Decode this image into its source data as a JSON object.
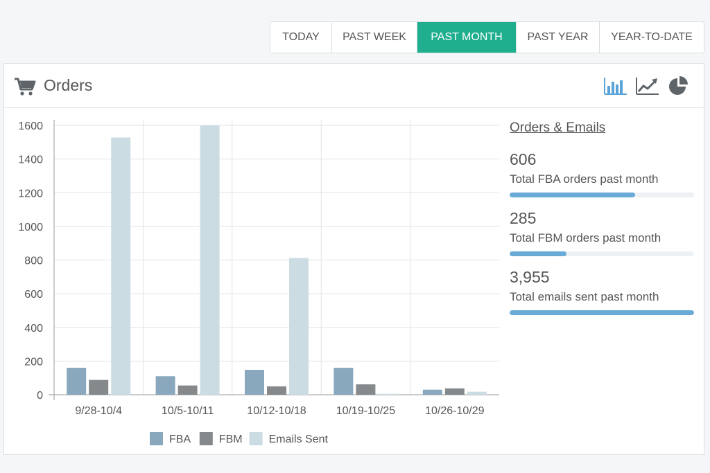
{
  "tabs": [
    {
      "label": "TODAY",
      "active": false
    },
    {
      "label": "PAST WEEK",
      "active": false
    },
    {
      "label": "PAST MONTH",
      "active": true
    },
    {
      "label": "PAST YEAR",
      "active": false
    },
    {
      "label": "YEAR-TO-DATE",
      "active": false
    }
  ],
  "panel": {
    "title": "Orders",
    "icons": [
      "shopping-cart-icon",
      "bar-chart-icon",
      "line-chart-icon",
      "pie-chart-icon"
    ]
  },
  "colors": {
    "accent": "#1fae8e",
    "fba": "#89a8bd",
    "fbm": "#85898c",
    "emails": "#cbdde3",
    "progress": "#6aaad6",
    "active_view_icon": "#5aa3d8"
  },
  "stats": {
    "title": "Orders & Emails",
    "items": [
      {
        "value": "606",
        "label": "Total FBA orders past month",
        "progress": 0.68
      },
      {
        "value": "285",
        "label": "Total FBM orders past month",
        "progress": 0.31
      },
      {
        "value": "3,955",
        "label": "Total emails sent past month",
        "progress": 1.0
      }
    ]
  },
  "chart_data": {
    "type": "bar",
    "categories": [
      "9/28-10/4",
      "10/5-10/11",
      "10/12-10/18",
      "10/19-10/25",
      "10/26-10/29"
    ],
    "series": [
      {
        "name": "FBA",
        "values": [
          160,
          110,
          148,
          160,
          30
        ]
      },
      {
        "name": "FBM",
        "values": [
          88,
          55,
          50,
          62,
          38
        ]
      },
      {
        "name": "Emails Sent",
        "values": [
          1528,
          1600,
          812,
          5,
          18
        ]
      }
    ],
    "ylim": [
      0,
      1600
    ],
    "yticks": [
      0,
      200,
      400,
      600,
      800,
      1000,
      1200,
      1400,
      1600
    ],
    "xlabel": "",
    "ylabel": "",
    "grid": true,
    "legend": "bottom"
  }
}
